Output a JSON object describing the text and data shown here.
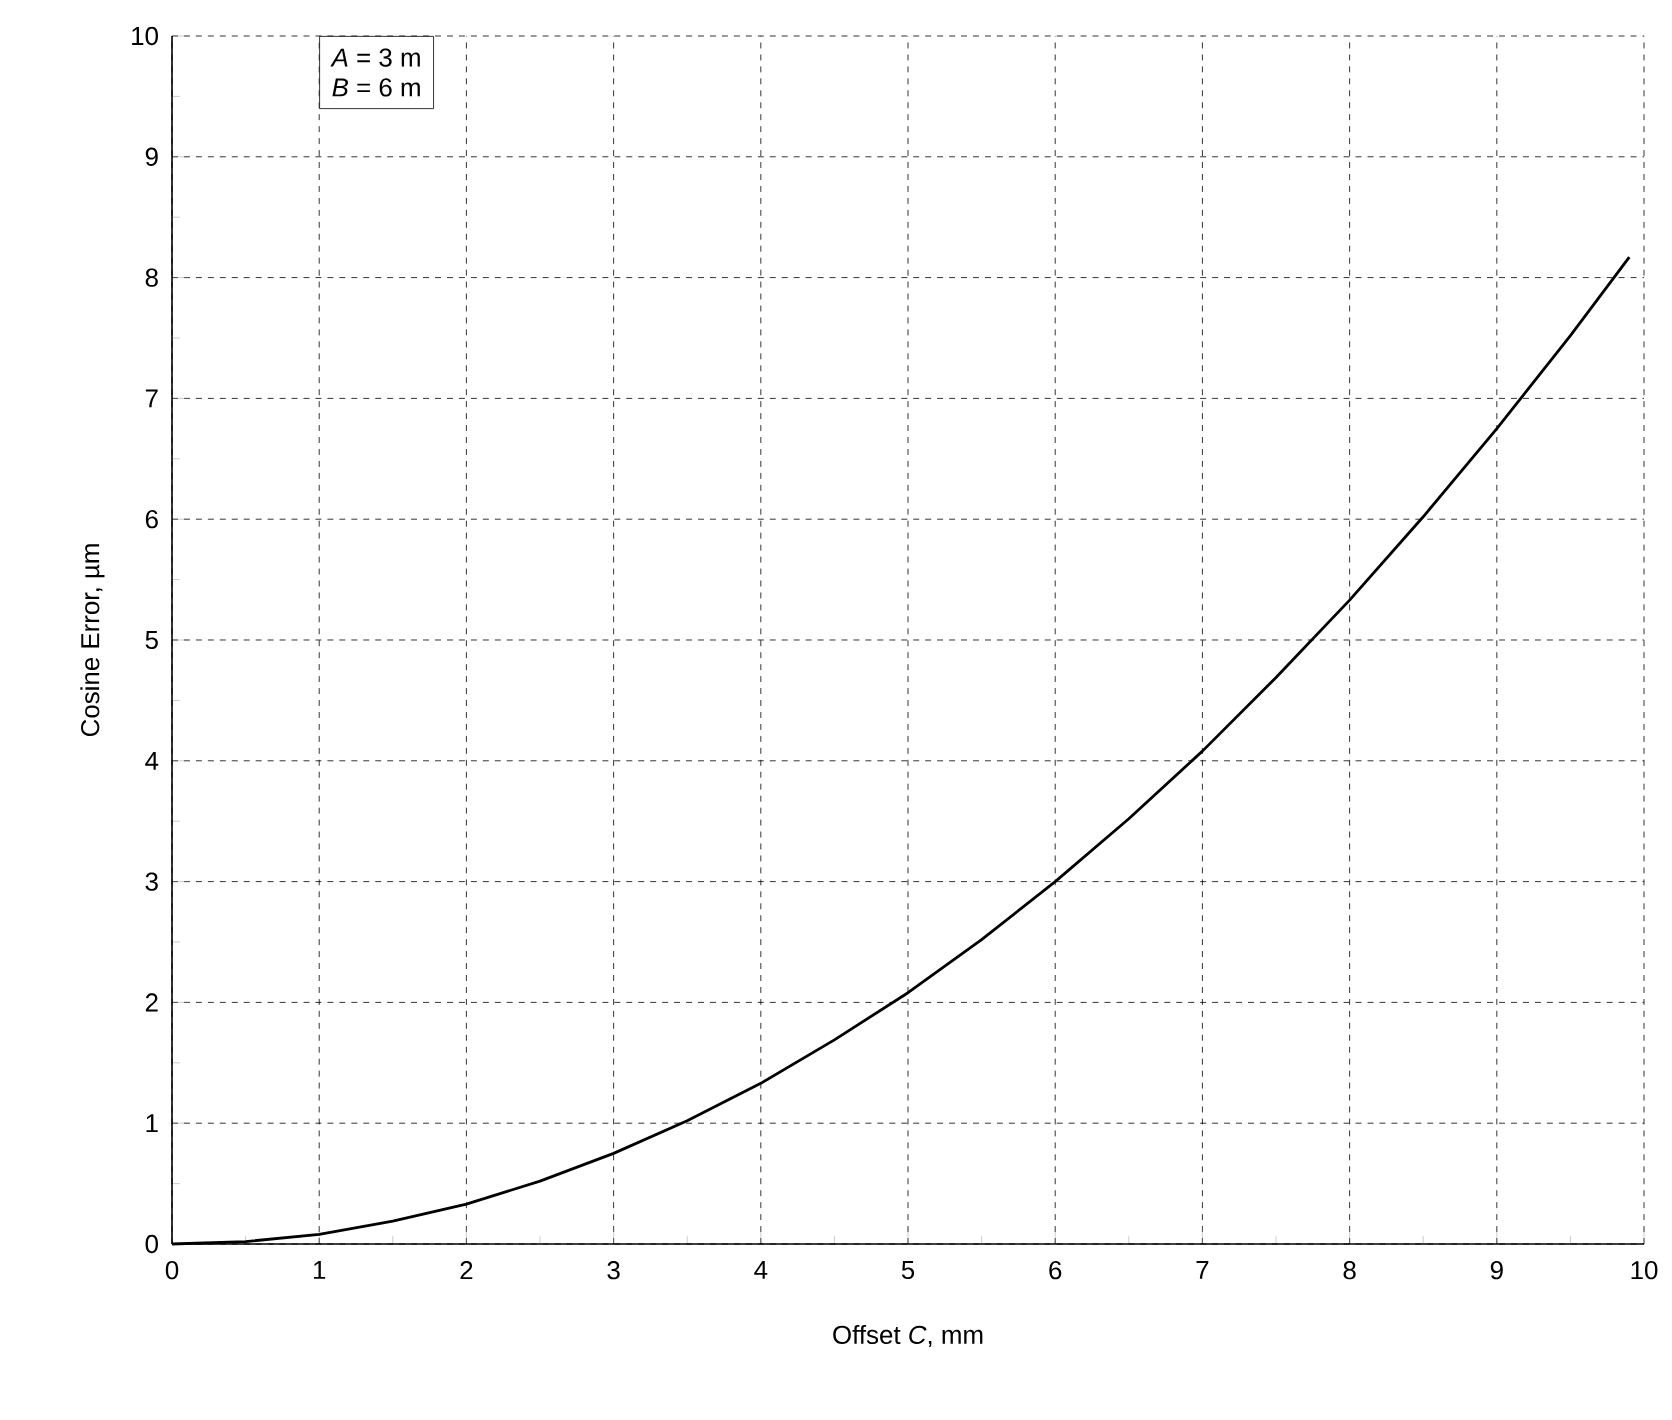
{
  "chart_data": {
    "type": "line",
    "xlabel": "Offset *C*, mm",
    "ylabel": "Cosine Error, µm",
    "annotations": [
      "*A* = 3 m",
      "*B* = 6 m"
    ],
    "x": [
      0,
      0.5,
      1,
      1.5,
      2,
      2.5,
      3,
      3.5,
      4,
      4.5,
      5,
      5.5,
      6,
      6.5,
      7,
      7.5,
      8,
      8.5,
      9,
      9.5,
      9.9
    ],
    "series": [
      {
        "color": "#000000",
        "values": [
          0,
          0.02,
          0.08,
          0.19,
          0.33,
          0.52,
          0.75,
          1.02,
          1.33,
          1.69,
          2.08,
          2.52,
          3.0,
          3.52,
          4.08,
          4.69,
          5.33,
          6.02,
          6.75,
          7.52,
          8.17
        ]
      }
    ],
    "xlim": [
      0,
      10
    ],
    "ylim": [
      0,
      10
    ],
    "xticks": [
      0,
      1,
      2,
      3,
      4,
      5,
      6,
      7,
      8,
      9,
      10
    ],
    "yticks": [
      0,
      1,
      2,
      3,
      4,
      5,
      6,
      7,
      8,
      9,
      10
    ],
    "grid": true,
    "marker": "none",
    "line_style": "solid"
  }
}
